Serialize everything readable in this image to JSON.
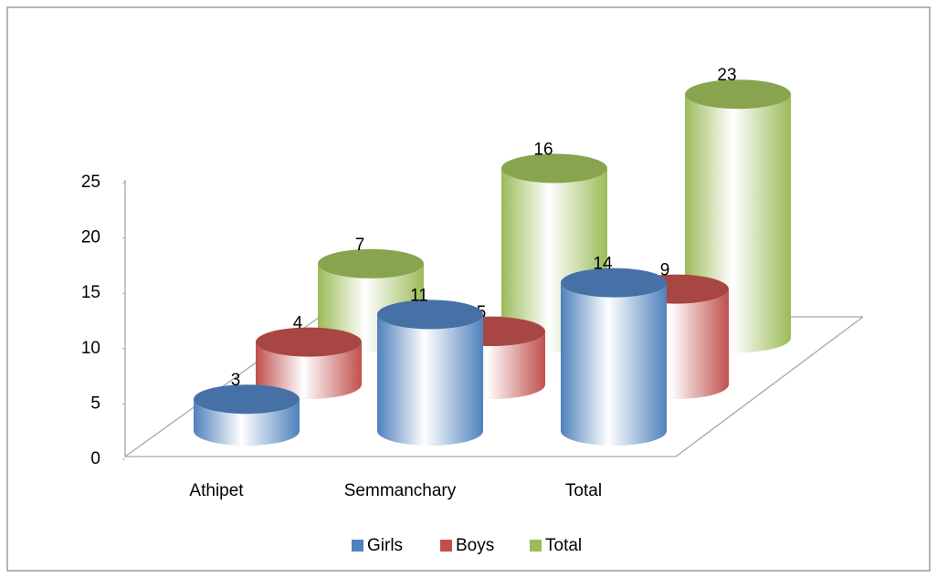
{
  "chart_data": {
    "type": "bar",
    "categories": [
      "Athipet",
      "Semmanchary",
      "Total"
    ],
    "series": [
      {
        "name": "Girls",
        "color": "#4f81bd",
        "values": [
          3,
          11,
          14
        ]
      },
      {
        "name": "Boys",
        "color": "#c0504d",
        "values": [
          4,
          5,
          9
        ]
      },
      {
        "name": "Total",
        "color": "#9bbb59",
        "values": [
          7,
          16,
          23
        ]
      }
    ],
    "ylim": [
      0,
      25
    ],
    "yticks": [
      0,
      5,
      10,
      15,
      20,
      25
    ],
    "legend": "bottom"
  }
}
